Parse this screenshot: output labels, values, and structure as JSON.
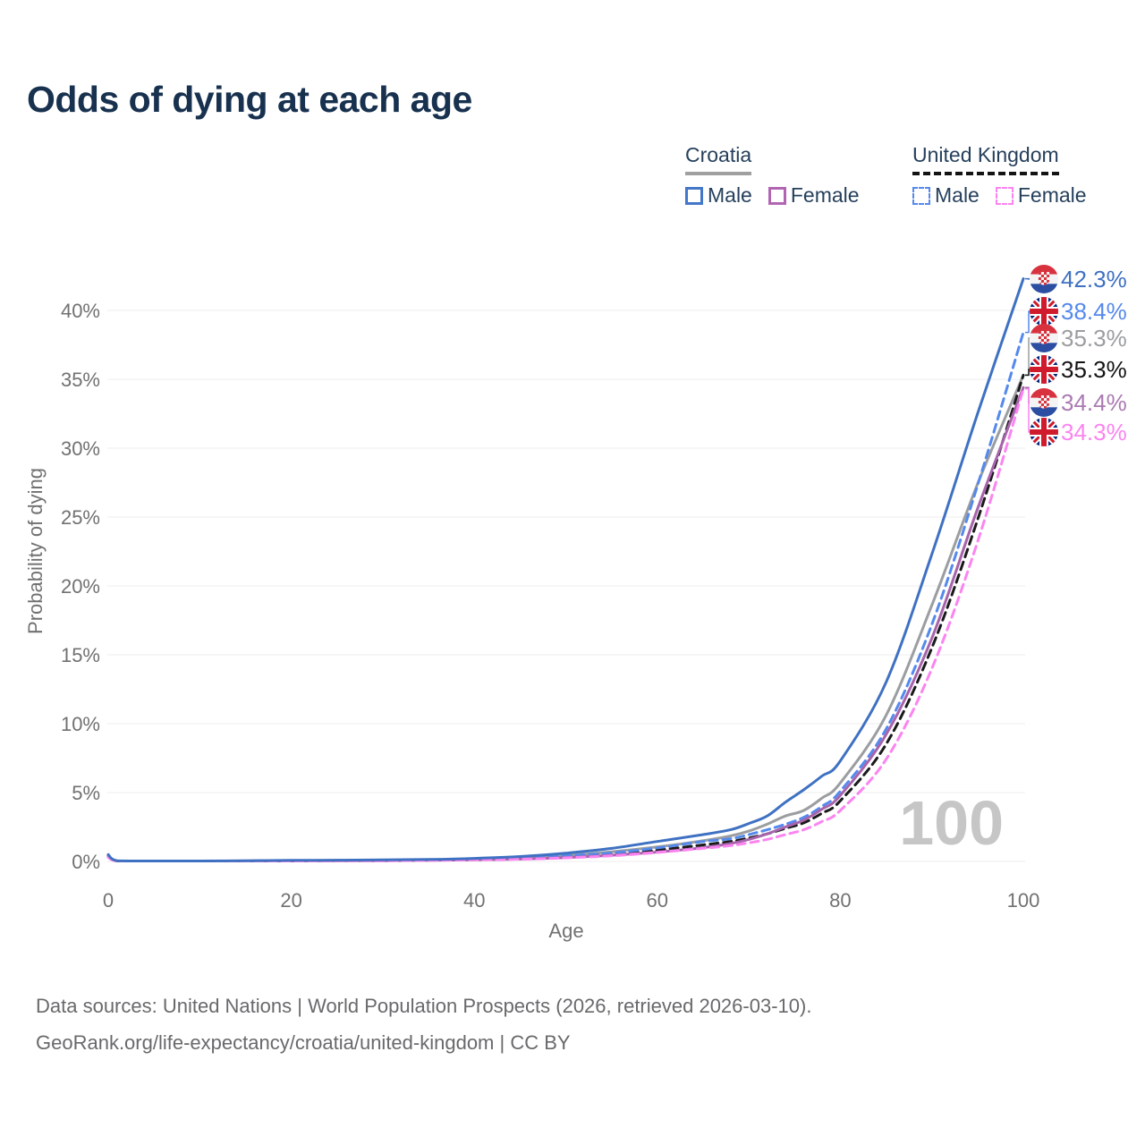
{
  "title": "Odds of dying at each age",
  "legend": {
    "groups": [
      {
        "country": "Croatia",
        "underline_style": "solid",
        "underline_color": "#a0a0a0",
        "items": [
          {
            "label": "Male",
            "color": "#4377c9",
            "style": "solid"
          },
          {
            "label": "Female",
            "color": "#b266b2",
            "style": "solid"
          }
        ]
      },
      {
        "country": "United Kingdom",
        "underline_style": "dashed",
        "underline_color": "#141414",
        "items": [
          {
            "label": "Male",
            "color": "#5589ec",
            "style": "dashed"
          },
          {
            "label": "Female",
            "color": "#fb84f0",
            "style": "dashed"
          }
        ]
      }
    ]
  },
  "chart_data": {
    "type": "line",
    "xlabel": "Age",
    "ylabel": "Probability of dying",
    "age_marker": "100",
    "x_ticks": [
      0,
      20,
      40,
      60,
      80,
      100
    ],
    "y_ticks": [
      "0%",
      "5%",
      "10%",
      "15%",
      "20%",
      "25%",
      "30%",
      "35%",
      "40%"
    ],
    "xlim": [
      0,
      100
    ],
    "ylim": [
      0,
      42.5
    ],
    "grid": true,
    "legend_position": "top-right",
    "ages": [
      0,
      1,
      5,
      10,
      15,
      20,
      25,
      30,
      35,
      40,
      45,
      50,
      55,
      60,
      65,
      68,
      70,
      72,
      74,
      76,
      78,
      80,
      85,
      90,
      95,
      100
    ],
    "series": [
      {
        "id": "croatia-male",
        "name": "Croatia Male",
        "color": "#3f71c2",
        "label_color": "#3f71c2",
        "dash": "solid",
        "flag": "croatia",
        "end_label": "42.3%",
        "values": [
          0.5,
          0.05,
          0.01,
          0.02,
          0.05,
          0.08,
          0.09,
          0.11,
          0.14,
          0.22,
          0.36,
          0.6,
          0.95,
          1.45,
          1.95,
          2.3,
          2.75,
          3.3,
          4.3,
          5.2,
          6.2,
          7.3,
          13.0,
          22.3,
          32.5,
          42.3
        ]
      },
      {
        "id": "uk-male",
        "name": "United Kingdom Male",
        "color": "#5589ec",
        "label_color": "#5589ec",
        "dash": "dashed",
        "flag": "uk",
        "end_label": "38.4%",
        "values": [
          0.4,
          0.03,
          0.01,
          0.01,
          0.03,
          0.06,
          0.07,
          0.08,
          0.11,
          0.17,
          0.26,
          0.4,
          0.62,
          0.98,
          1.45,
          1.65,
          1.95,
          2.3,
          2.7,
          3.2,
          4.0,
          5.1,
          9.6,
          17.2,
          27.3,
          38.4
        ]
      },
      {
        "id": "croatia-both",
        "name": "Croatia Both sexes",
        "color": "#9b9da0",
        "label_color": "#9b9da0",
        "dash": "solid",
        "flag": "croatia",
        "end_label": "35.3%",
        "values": [
          0.45,
          0.04,
          0.01,
          0.015,
          0.04,
          0.06,
          0.07,
          0.08,
          0.11,
          0.16,
          0.26,
          0.44,
          0.7,
          1.05,
          1.5,
          1.85,
          2.2,
          2.7,
          3.3,
          3.7,
          4.6,
          5.7,
          10.6,
          18.6,
          27.4,
          35.3
        ]
      },
      {
        "id": "uk-both",
        "name": "United Kingdom Both sexes",
        "color": "#1a1a1a",
        "label_color": "#141414",
        "dash": "dashed",
        "flag": "uk",
        "end_label": "35.3%",
        "values": [
          0.35,
          0.025,
          0.008,
          0.01,
          0.025,
          0.045,
          0.055,
          0.065,
          0.09,
          0.14,
          0.21,
          0.33,
          0.52,
          0.82,
          1.2,
          1.45,
          1.7,
          2.0,
          2.4,
          2.8,
          3.5,
          4.4,
          8.5,
          15.5,
          24.8,
          35.3
        ]
      },
      {
        "id": "croatia-female",
        "name": "Croatia Female",
        "color": "#a763ab",
        "label_color": "#aa7ab2",
        "dash": "solid",
        "flag": "croatia",
        "end_label": "34.4%",
        "values": [
          0.4,
          0.03,
          0.008,
          0.01,
          0.02,
          0.035,
          0.045,
          0.055,
          0.08,
          0.11,
          0.17,
          0.28,
          0.45,
          0.68,
          1.0,
          1.3,
          1.6,
          2.0,
          2.5,
          3.0,
          3.8,
          4.8,
          9.2,
          16.2,
          25.6,
          34.4
        ]
      },
      {
        "id": "uk-female",
        "name": "United Kingdom Female",
        "color": "#fb84f0",
        "label_color": "#fb84f0",
        "dash": "dashed",
        "flag": "uk",
        "end_label": "34.3%",
        "values": [
          0.3,
          0.02,
          0.007,
          0.008,
          0.018,
          0.03,
          0.04,
          0.05,
          0.07,
          0.11,
          0.16,
          0.26,
          0.41,
          0.65,
          0.95,
          1.15,
          1.35,
          1.6,
          1.95,
          2.3,
          2.9,
          3.7,
          7.4,
          14.0,
          23.2,
          34.3
        ]
      }
    ],
    "flag_colors": {
      "croatia_red": "#d8323f",
      "croatia_blue": "#2b4ea3",
      "croatia_white": "#f4f4f4",
      "uk_blue": "#00247d",
      "uk_red": "#cf1b2b",
      "uk_white": "#ffffff"
    },
    "gridline_color": "#ececec",
    "axis_text_color": "#717171",
    "watermark_color": "#c6c6c6"
  },
  "footer": {
    "line1": "Data sources: United Nations | World Population Prospects (2026, retrieved 2026-03-10).",
    "line2": "GeoRank.org/life-expectancy/croatia/united-kingdom | CC BY"
  }
}
